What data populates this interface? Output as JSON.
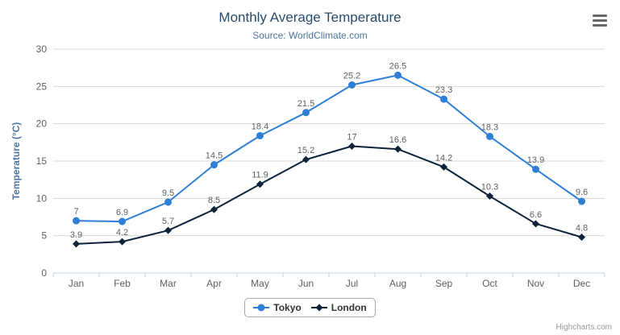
{
  "header": {
    "title": "Monthly Average Temperature",
    "subtitle": "Source: WorldClimate.com"
  },
  "chart_data": {
    "type": "line",
    "title": "Monthly Average Temperature",
    "subtitle": "Source: WorldClimate.com",
    "xlabel": "",
    "ylabel": "Temperature (°C)",
    "ylim": [
      0,
      30
    ],
    "yticks": [
      0,
      5,
      10,
      15,
      20,
      25,
      30
    ],
    "grid": true,
    "data_labels": true,
    "legend_position": "bottom",
    "categories": [
      "Jan",
      "Feb",
      "Mar",
      "Apr",
      "May",
      "Jun",
      "Jul",
      "Aug",
      "Sep",
      "Oct",
      "Nov",
      "Dec"
    ],
    "series": [
      {
        "name": "Tokyo",
        "color": "#2f7ed8",
        "marker": "circle",
        "values": [
          7,
          6.9,
          9.5,
          14.5,
          18.4,
          21.5,
          25.2,
          26.5,
          23.3,
          18.3,
          13.9,
          9.6
        ]
      },
      {
        "name": "London",
        "color": "#0d233a",
        "marker": "diamond",
        "values": [
          3.9,
          4.2,
          5.7,
          8.5,
          11.9,
          15.2,
          17,
          16.6,
          14.2,
          10.3,
          6.6,
          4.8
        ]
      }
    ]
  },
  "styles": {
    "grid_color": "#d8d8d8",
    "axis_line_color": "#c0d0e0",
    "tick_label_color": "#606060",
    "data_label_color": "#606060",
    "y_title_color": "#4d759e"
  },
  "export_menu": {
    "icon": "hamburger-icon"
  },
  "credits": {
    "label": "Highcharts.com"
  }
}
